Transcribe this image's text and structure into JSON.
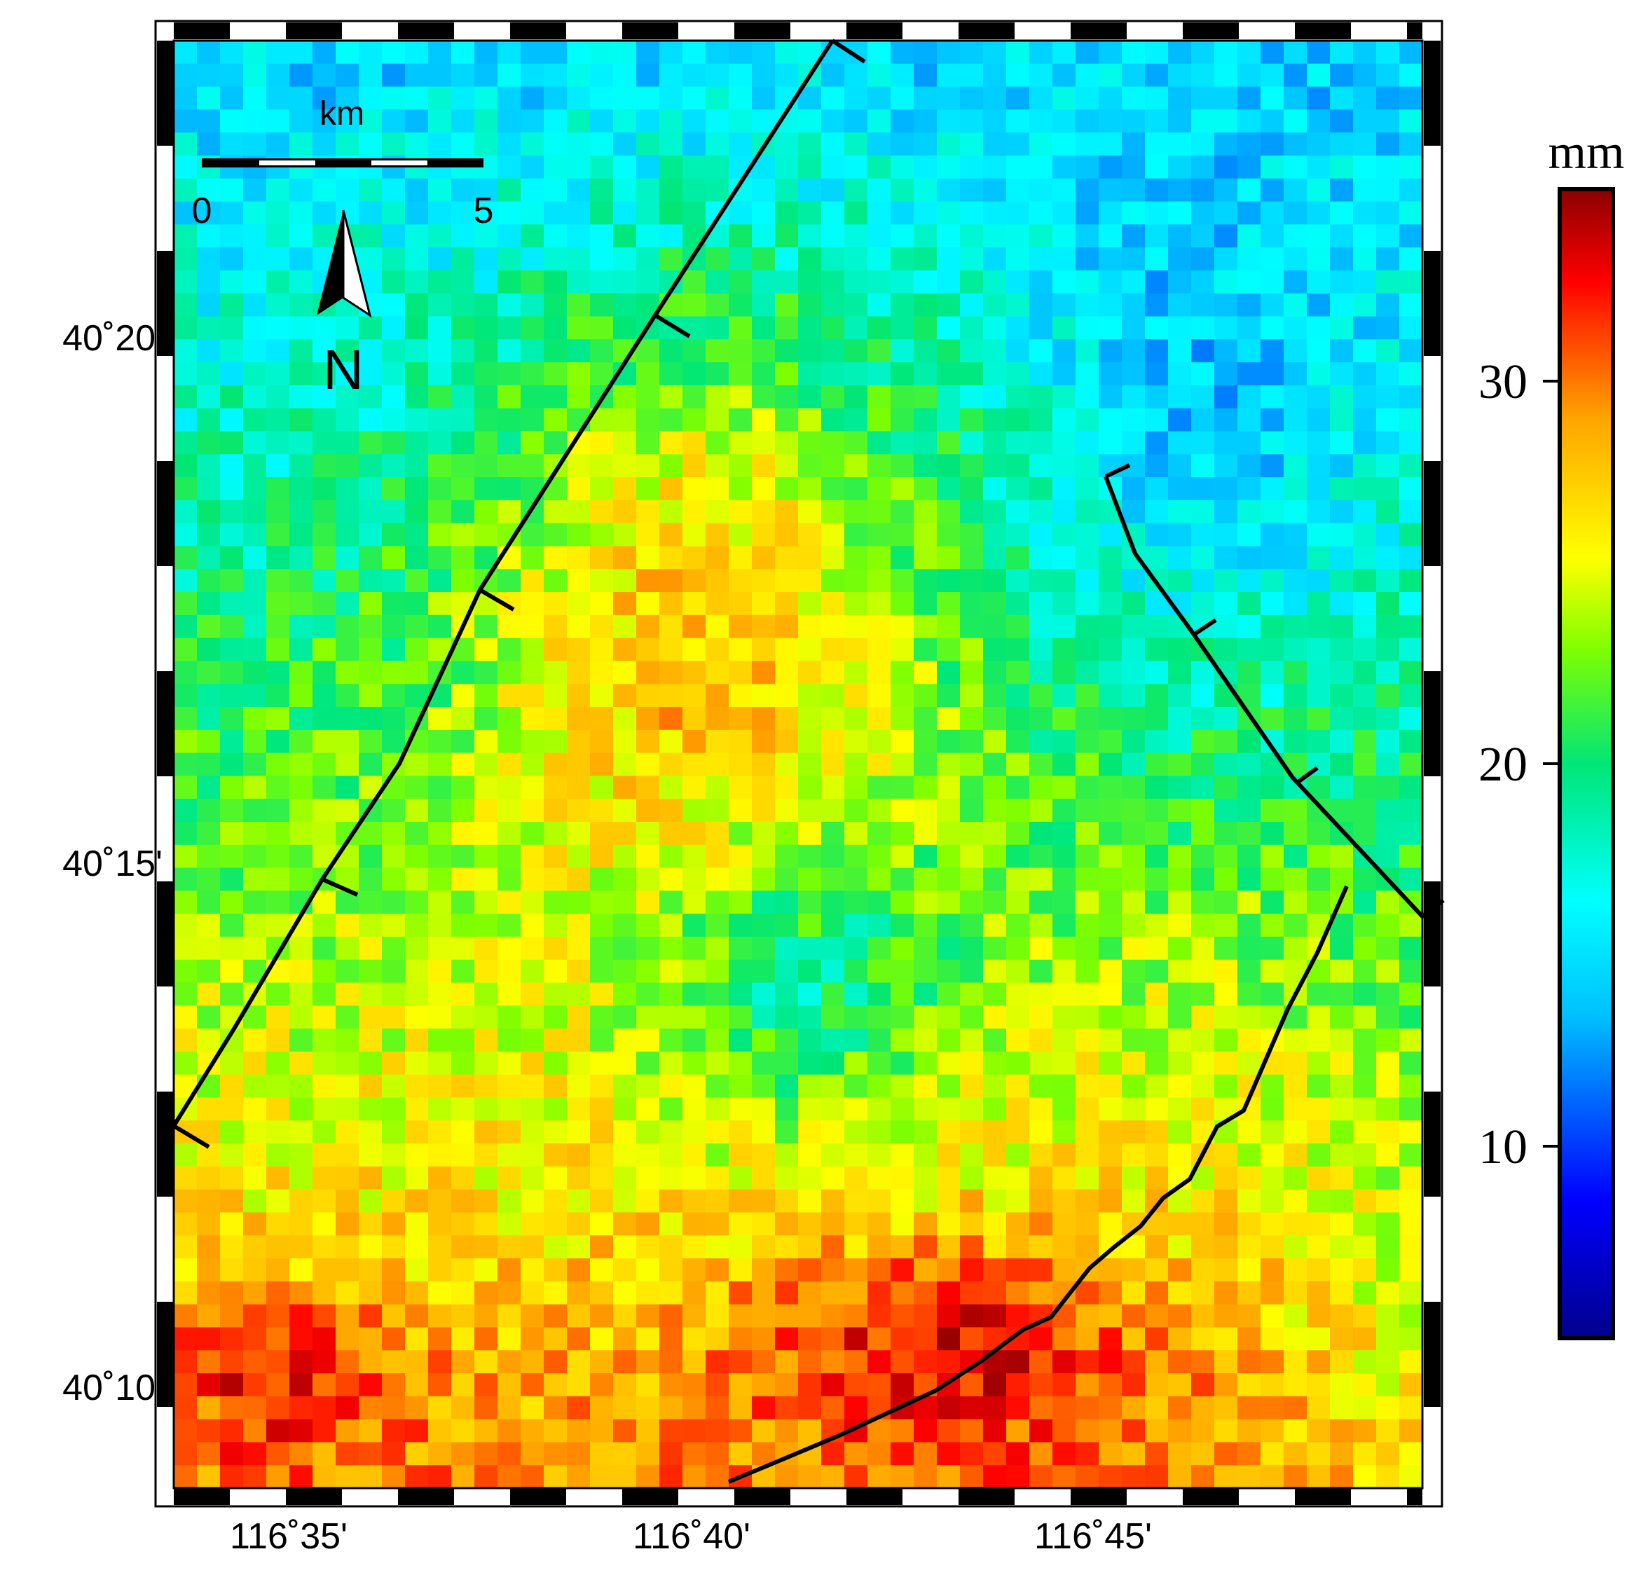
{
  "map": {
    "lat_ticks": [
      "40˚20'",
      "40˚15'",
      "40˚10'"
    ],
    "lon_ticks": [
      "116˚35'",
      "116˚40'",
      "116˚45'"
    ],
    "lat_values": [
      40.3333,
      40.25,
      40.1667
    ],
    "lon_values": [
      116.5833,
      116.6667,
      116.75
    ],
    "extent": {
      "lon_min": 116.5,
      "lon_max": 116.833,
      "lat_min": 40.133,
      "lat_max": 40.383
    }
  },
  "scale_bar": {
    "unit": "km",
    "start_label": "0",
    "end_label": "5"
  },
  "north_arrow": {
    "label": "N"
  },
  "colorbar": {
    "unit": "mm",
    "tick_labels": [
      "30",
      "20",
      "10"
    ],
    "tick_values": [
      30,
      20,
      10
    ],
    "range": [
      5,
      35
    ],
    "colormap": "jet",
    "colors": [
      "#00008b",
      "#0000ff",
      "#00bfff",
      "#00ffff",
      "#00e676",
      "#7fff00",
      "#ffff00",
      "#ffa500",
      "#ff0000",
      "#8b0000"
    ]
  },
  "raster": {
    "description_zones": [
      {
        "region": "north",
        "value_mm": 15
      },
      {
        "region": "center",
        "value_mm": 24
      },
      {
        "region": "south",
        "value_mm": 29
      }
    ]
  },
  "faults": {
    "style": "black line with tick marks",
    "count": 3
  }
}
